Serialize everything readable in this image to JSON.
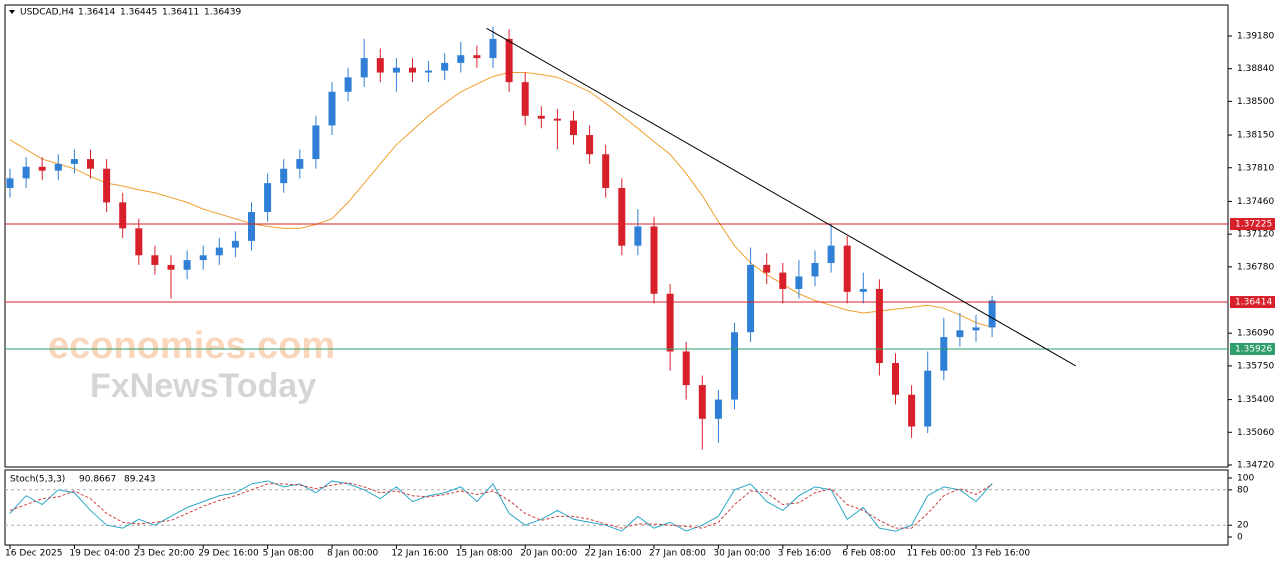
{
  "chart_data": [
    {
      "type": "candlestick",
      "title": "USDCAD,H4",
      "header_values": [
        1.36414,
        1.36445,
        1.36411,
        1.36439
      ],
      "watermark": [
        "economies.com",
        "FxNewsToday"
      ],
      "categories": [
        "16 Dec 2025",
        null,
        null,
        null,
        "19 Dec 04:00",
        null,
        null,
        null,
        "23 Dec 20:00",
        null,
        null,
        null,
        "29 Dec 16:00",
        null,
        null,
        null,
        "5 Jan 08:00",
        null,
        null,
        null,
        "8 Jan 00:00",
        null,
        null,
        null,
        "12 Jan 16:00",
        null,
        null,
        null,
        "15 Jan 08:00",
        null,
        null,
        null,
        "20 Jan 00:00",
        null,
        null,
        null,
        "22 Jan 16:00",
        null,
        null,
        null,
        "27 Jan 08:00",
        null,
        null,
        null,
        "30 Jan 00:00",
        null,
        null,
        null,
        "3 Feb 16:00",
        null,
        null,
        null,
        "6 Feb 08:00",
        null,
        null,
        null,
        "11 Feb 00:00",
        null,
        null,
        null,
        "13 Feb 16:00",
        null
      ],
      "open": [
        1.376,
        1.377,
        1.3782,
        1.3778,
        1.3785,
        1.379,
        1.378,
        1.3745,
        1.3718,
        1.369,
        1.368,
        1.3675,
        1.3685,
        1.369,
        1.3698,
        1.3705,
        1.3735,
        1.3765,
        1.378,
        1.379,
        1.3825,
        1.386,
        1.3875,
        1.3895,
        1.388,
        1.3885,
        1.388,
        1.3882,
        1.389,
        1.3898,
        1.3895,
        1.3915,
        1.387,
        1.3835,
        1.3832,
        1.383,
        1.3815,
        1.3795,
        1.376,
        1.37,
        1.372,
        1.365,
        1.359,
        1.3555,
        1.352,
        1.354,
        1.361,
        1.368,
        1.3672,
        1.3655,
        1.3668,
        1.3682,
        1.37,
        1.3652,
        1.3655,
        1.3578,
        1.3545,
        1.3512,
        1.357,
        1.3605,
        1.3612,
        1.3615
      ],
      "high": [
        1.378,
        1.3792,
        1.3792,
        1.3795,
        1.38,
        1.38,
        1.379,
        1.3755,
        1.3728,
        1.37,
        1.369,
        1.3695,
        1.37,
        1.3708,
        1.3715,
        1.3745,
        1.3775,
        1.379,
        1.38,
        1.3835,
        1.387,
        1.3885,
        1.3915,
        1.3905,
        1.3895,
        1.3895,
        1.3892,
        1.39,
        1.3912,
        1.3908,
        1.3928,
        1.3925,
        1.388,
        1.3845,
        1.3842,
        1.384,
        1.3825,
        1.3805,
        1.377,
        1.3738,
        1.373,
        1.366,
        1.36,
        1.3565,
        1.355,
        1.362,
        1.3698,
        1.3692,
        1.3682,
        1.3685,
        1.3695,
        1.3722,
        1.371,
        1.3672,
        1.3665,
        1.3588,
        1.3555,
        1.359,
        1.3625,
        1.363,
        1.3628,
        1.3648
      ],
      "low": [
        1.375,
        1.376,
        1.3768,
        1.3768,
        1.3775,
        1.377,
        1.3735,
        1.3708,
        1.368,
        1.367,
        1.3645,
        1.3665,
        1.3675,
        1.368,
        1.3688,
        1.3695,
        1.3725,
        1.3755,
        1.377,
        1.378,
        1.3815,
        1.385,
        1.3865,
        1.387,
        1.386,
        1.387,
        1.387,
        1.3872,
        1.388,
        1.3885,
        1.3885,
        1.386,
        1.3825,
        1.3822,
        1.38,
        1.3805,
        1.3785,
        1.375,
        1.369,
        1.369,
        1.364,
        1.357,
        1.354,
        1.3488,
        1.3495,
        1.353,
        1.36,
        1.366,
        1.364,
        1.3645,
        1.3658,
        1.3672,
        1.364,
        1.364,
        1.3565,
        1.3535,
        1.35,
        1.3505,
        1.356,
        1.3595,
        1.36,
        1.3605
      ],
      "close": [
        1.377,
        1.3782,
        1.3778,
        1.3785,
        1.379,
        1.378,
        1.3745,
        1.3718,
        1.369,
        1.368,
        1.3675,
        1.3685,
        1.369,
        1.3698,
        1.3705,
        1.3735,
        1.3765,
        1.378,
        1.379,
        1.3825,
        1.386,
        1.3875,
        1.3895,
        1.388,
        1.3885,
        1.388,
        1.3882,
        1.389,
        1.3898,
        1.3895,
        1.3915,
        1.387,
        1.3835,
        1.3832,
        1.383,
        1.3815,
        1.3795,
        1.376,
        1.37,
        1.372,
        1.365,
        1.359,
        1.3555,
        1.352,
        1.354,
        1.361,
        1.368,
        1.3672,
        1.3655,
        1.3668,
        1.3682,
        1.37,
        1.3652,
        1.3655,
        1.3578,
        1.3545,
        1.3512,
        1.357,
        1.3605,
        1.3612,
        1.3615,
        1.3643
      ],
      "up_color": "#2f7fd6",
      "down_color": "#d8202a",
      "series": [
        {
          "color": "#f0a030",
          "values": [
            1.381,
            1.38,
            1.379,
            1.3785,
            1.378,
            1.3772,
            1.3765,
            1.3762,
            1.3758,
            1.3755,
            1.375,
            1.3745,
            1.3738,
            1.3733,
            1.3728,
            1.3723,
            1.372,
            1.3718,
            1.3718,
            1.3722,
            1.3728,
            1.3745,
            1.3765,
            1.3785,
            1.3805,
            1.382,
            1.3835,
            1.3848,
            1.386,
            1.3868,
            1.3876,
            1.388,
            1.388,
            1.3878,
            1.3875,
            1.3868,
            1.386,
            1.3848,
            1.3835,
            1.3822,
            1.3808,
            1.3795,
            1.3775,
            1.3752,
            1.3725,
            1.37,
            1.3682,
            1.367,
            1.366,
            1.365,
            1.3643,
            1.3638,
            1.3633,
            1.363,
            1.3632,
            1.3634,
            1.3636,
            1.3638,
            1.3635,
            1.3628,
            1.362,
            1.3615
          ]
        }
      ],
      "trendline": {
        "color": "#000000",
        "x": [
          29.6,
          66.2
        ],
        "y": [
          1.3926,
          1.3575
        ]
      },
      "levels": [
        {
          "value": 1.37225,
          "color": "#d8202a"
        },
        {
          "value": 1.36414,
          "color": "#d8202a"
        },
        {
          "value": 1.35926,
          "color": "#2e9e6a"
        }
      ],
      "ylim": [
        1.34699,
        1.39502
      ],
      "yticks": [
        {
          "value": 1.3918,
          "label": "1.39180"
        },
        {
          "value": 1.3884,
          "label": "1.38840"
        },
        {
          "value": 1.385,
          "label": "1.38500"
        },
        {
          "value": 1.3815,
          "label": "1.38150"
        },
        {
          "value": 1.3781,
          "label": "1.37810"
        },
        {
          "value": 1.3746,
          "label": "1.37460"
        },
        {
          "value": 1.3712,
          "label": "1.37120"
        },
        {
          "value": 1.3678,
          "label": "1.36780"
        },
        {
          "value": 1.3609,
          "label": "1.36090"
        },
        {
          "value": 1.3575,
          "label": "1.35750"
        },
        {
          "value": 1.354,
          "label": "1.35400"
        },
        {
          "value": 1.3506,
          "label": "1.35060"
        },
        {
          "value": 1.3472,
          "label": "1.34720"
        }
      ]
    },
    {
      "type": "line",
      "title": "Stoch(5,3,3)",
      "series": [
        {
          "color": "#2aa7c9",
          "values": [
            40,
            70,
            55,
            80,
            75,
            45,
            20,
            15,
            30,
            20,
            35,
            50,
            60,
            70,
            75,
            90,
            95,
            85,
            90,
            75,
            95,
            90,
            80,
            65,
            85,
            60,
            70,
            75,
            85,
            60,
            90,
            40,
            20,
            30,
            45,
            30,
            25,
            20,
            10,
            35,
            15,
            25,
            10,
            20,
            35,
            80,
            90,
            60,
            45,
            70,
            85,
            80,
            30,
            50,
            15,
            10,
            20,
            70,
            85,
            80,
            60,
            90.8667
          ]
        },
        {
          "color": "#d04040",
          "values": [
            45,
            55,
            65,
            68,
            78,
            65,
            40,
            25,
            22,
            25,
            28,
            40,
            52,
            62,
            70,
            80,
            90,
            90,
            88,
            82,
            88,
            92,
            85,
            75,
            78,
            70,
            68,
            72,
            78,
            72,
            78,
            62,
            40,
            28,
            35,
            35,
            30,
            22,
            15,
            22,
            22,
            20,
            18,
            15,
            25,
            55,
            78,
            75,
            55,
            58,
            75,
            82,
            55,
            45,
            28,
            15,
            15,
            40,
            70,
            82,
            72,
            89.243
          ]
        }
      ],
      "levels": [
        20,
        80
      ],
      "ylim": [
        -13.6,
        113.6
      ],
      "yticks": [
        0,
        20,
        80,
        100
      ]
    }
  ]
}
